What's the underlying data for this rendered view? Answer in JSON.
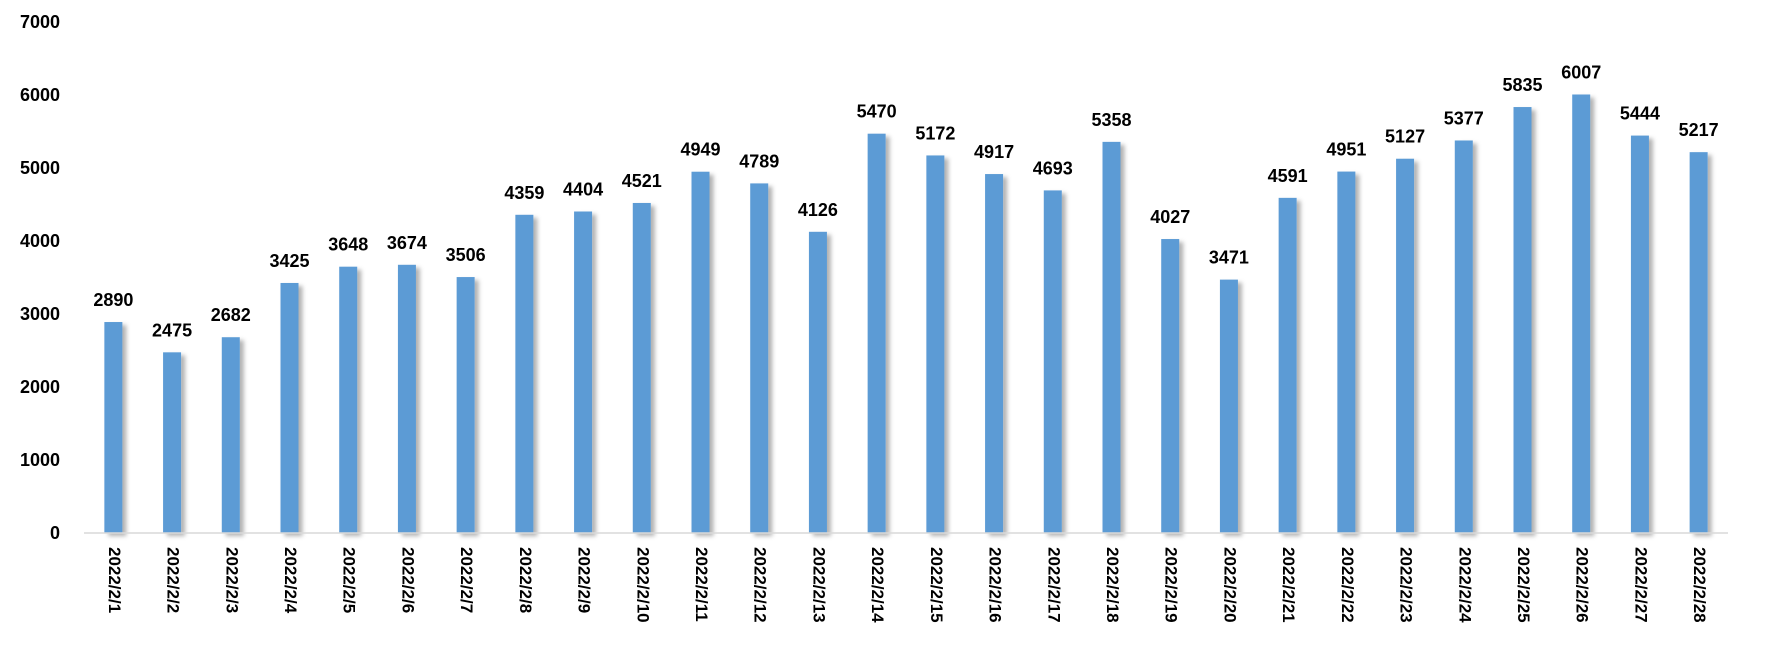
{
  "chart_data": {
    "type": "bar",
    "title": "",
    "xlabel": "",
    "ylabel": "",
    "categories": [
      "2022/2/1",
      "2022/2/2",
      "2022/2/3",
      "2022/2/4",
      "2022/2/5",
      "2022/2/6",
      "2022/2/7",
      "2022/2/8",
      "2022/2/9",
      "2022/2/10",
      "2022/2/11",
      "2022/2/12",
      "2022/2/13",
      "2022/2/14",
      "2022/2/15",
      "2022/2/16",
      "2022/2/17",
      "2022/2/18",
      "2022/2/19",
      "2022/2/20",
      "2022/2/21",
      "2022/2/22",
      "2022/2/23",
      "2022/2/24",
      "2022/2/25",
      "2022/2/26",
      "2022/2/27",
      "2022/2/28"
    ],
    "values": [
      2890,
      2475,
      2682,
      3425,
      3648,
      3674,
      3506,
      4359,
      4404,
      4521,
      4949,
      4789,
      4126,
      5470,
      5172,
      4917,
      4693,
      5358,
      4027,
      3471,
      4591,
      4951,
      5127,
      5377,
      5835,
      6007,
      5444,
      5217
    ],
    "ylim": [
      0,
      7000
    ],
    "yticks": [
      0,
      1000,
      2000,
      3000,
      4000,
      5000,
      6000,
      7000
    ],
    "grid": false,
    "legend": "none",
    "bar_color": "#5b9bd5",
    "data_labels": true
  }
}
